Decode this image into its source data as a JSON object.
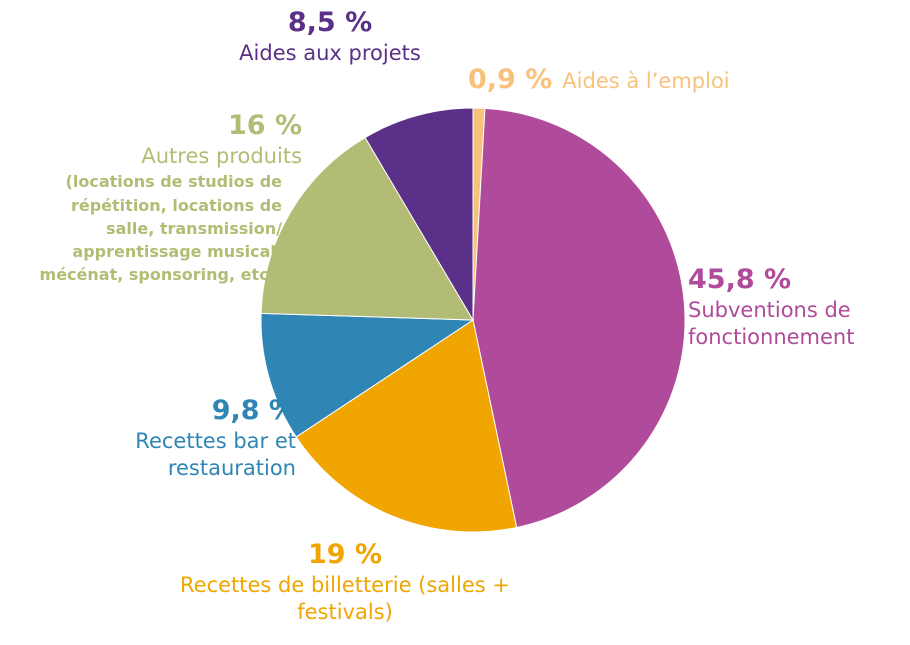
{
  "chart_data": {
    "type": "pie",
    "categories": [
      "Aides à l’emploi",
      "Subventions de fonctionnement",
      "Recettes de billetterie (salles + festivals)",
      "Recettes bar et restauration",
      "Autres produits",
      "Aides aux projets"
    ],
    "values": [
      0.9,
      45.8,
      19,
      9.8,
      16,
      8.5
    ],
    "value_labels": [
      "0,9 %",
      "45,8 %",
      "19 %",
      "9,8 %",
      "16 %",
      "8,5 %"
    ],
    "colors": [
      "#f9c27c",
      "#b04a9b",
      "#f0a500",
      "#2f86b4",
      "#b3bc74",
      "#5a3088"
    ],
    "annotations": [
      {
        "text": "(locations de studios de répétition, locations de salle, transmission/ apprentissage musical, mécénat, sponsoring, etc.)"
      }
    ]
  }
}
